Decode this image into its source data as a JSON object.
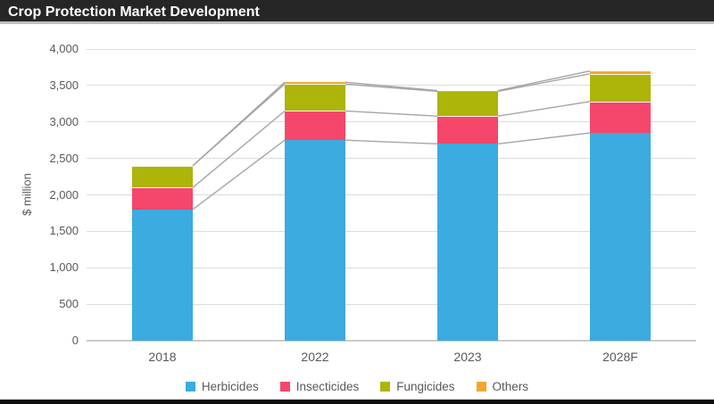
{
  "title_bar": {
    "title": "Crop Protection Market Development"
  },
  "chart_data": {
    "type": "bar",
    "stacked": true,
    "title": "Crop Protection Market Development",
    "ylabel": "$ million",
    "xlabel": "",
    "ylim": [
      0,
      4000
    ],
    "ytick_step": 500,
    "yticks": [
      "0",
      "500",
      "1,000",
      "1,500",
      "2,000",
      "2,500",
      "3,000",
      "3,500",
      "4,000"
    ],
    "grid": true,
    "legend_position": "bottom",
    "series_lines": true,
    "series_line_color": "#a6a6a6",
    "categories": [
      "2018",
      "2022",
      "2023",
      "2028F"
    ],
    "series": [
      {
        "name": "Herbicides",
        "color": "#3babe0",
        "values": [
          1800,
          2750,
          2700,
          2850
        ]
      },
      {
        "name": "Insecticides",
        "color": "#f4476b",
        "values": [
          300,
          400,
          380,
          430
        ]
      },
      {
        "name": "Fungicides",
        "color": "#adb40a",
        "values": [
          300,
          370,
          340,
          380
        ]
      },
      {
        "name": "Others",
        "color": "#f2a72e",
        "values": [
          0,
          25,
          10,
          40
        ]
      }
    ]
  }
}
